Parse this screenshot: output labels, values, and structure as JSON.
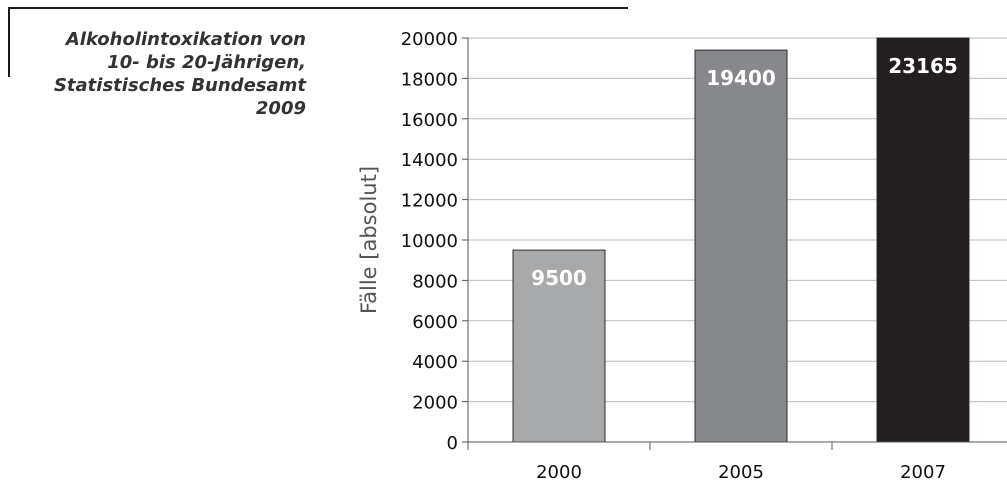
{
  "caption": {
    "lines": [
      "Alkoholintoxikation von",
      "10- bis 20-Jährigen,",
      "Statistisches Bundesamt",
      "2009"
    ]
  },
  "chart_data": {
    "type": "bar",
    "categories": [
      "2000",
      "2005",
      "2007"
    ],
    "values": [
      9500,
      19400,
      23165
    ],
    "data_labels": [
      "9500",
      "19400",
      "23165"
    ],
    "bar_colors": [
      "#a8a9ab",
      "#87888b",
      "#231f20"
    ],
    "label_color": "#ffffff",
    "title": "",
    "xlabel": "",
    "ylabel": "Fälle [absolut]",
    "ylim": [
      0,
      20000
    ],
    "yticks": [
      0,
      2000,
      4000,
      6000,
      8000,
      10000,
      12000,
      14000,
      16000,
      18000,
      20000
    ],
    "grid": true,
    "legend": "none"
  }
}
